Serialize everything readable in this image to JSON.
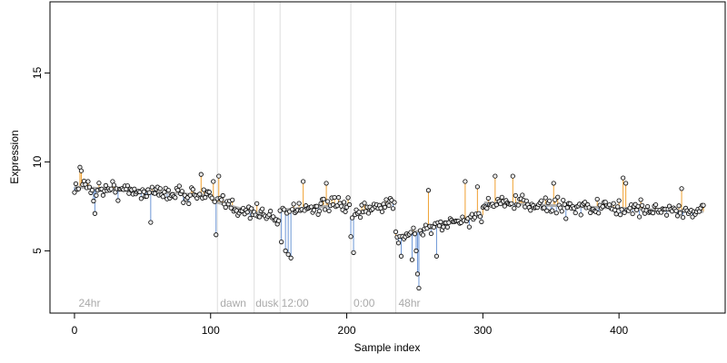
{
  "chart_data": {
    "type": "scatter",
    "xlabel": "Sample index",
    "ylabel": "Expression",
    "xlim": [
      -18,
      478
    ],
    "ylim": [
      1.5,
      19
    ],
    "xticks": [
      0,
      100,
      200,
      300,
      400
    ],
    "yticks": [
      5,
      10,
      15
    ],
    "grid": false,
    "annotations": [
      {
        "label": "24hr",
        "x": 3
      },
      {
        "label": "dawn",
        "x": 107
      },
      {
        "label": "dusk",
        "x": 133
      },
      {
        "label": "12:00",
        "x": 152
      },
      {
        "label": "0:00",
        "x": 205
      },
      {
        "label": "48hr",
        "x": 238
      }
    ],
    "vlines": [
      105,
      132,
      151,
      203,
      236
    ],
    "colors": {
      "above": "#f0a030",
      "below": "#6c96d6",
      "trend": "#b0b0b0",
      "point_fill": "#e8e8e8",
      "point_stroke": "#000000",
      "vline": "#dddddd",
      "annotation": "#aaaaaa"
    },
    "trend_segments": [
      {
        "x": [
          0,
          100
        ],
        "y": [
          8.6,
          8.1
        ]
      },
      {
        "x": [
          101,
          150
        ],
        "y": [
          7.8,
          6.8
        ]
      },
      {
        "x": [
          151,
          202
        ],
        "y": [
          7.3,
          7.6
        ]
      },
      {
        "x": [
          203,
          235
        ],
        "y": [
          6.9,
          7.8
        ]
      },
      {
        "x": [
          236,
          300
        ],
        "y": [
          5.8,
          7.0
        ]
      },
      {
        "x": [
          301,
          462
        ],
        "y": [
          7.7,
          7.2
        ]
      }
    ],
    "outliers": [
      {
        "x": 4,
        "y": 9.7
      },
      {
        "x": 5,
        "y": 9.5
      },
      {
        "x": 10,
        "y": 8.9
      },
      {
        "x": 14,
        "y": 7.8
      },
      {
        "x": 15,
        "y": 7.1
      },
      {
        "x": 56,
        "y": 6.6
      },
      {
        "x": 93,
        "y": 9.3
      },
      {
        "x": 102,
        "y": 8.9
      },
      {
        "x": 104,
        "y": 5.9
      },
      {
        "x": 106,
        "y": 9.2
      },
      {
        "x": 152,
        "y": 5.5
      },
      {
        "x": 155,
        "y": 5.0
      },
      {
        "x": 157,
        "y": 4.8
      },
      {
        "x": 159,
        "y": 4.6
      },
      {
        "x": 168,
        "y": 8.9
      },
      {
        "x": 185,
        "y": 8.8
      },
      {
        "x": 203,
        "y": 5.8
      },
      {
        "x": 205,
        "y": 4.9
      },
      {
        "x": 240,
        "y": 4.7
      },
      {
        "x": 248,
        "y": 4.5
      },
      {
        "x": 251,
        "y": 5.0
      },
      {
        "x": 252,
        "y": 3.7
      },
      {
        "x": 253,
        "y": 2.9
      },
      {
        "x": 260,
        "y": 8.4
      },
      {
        "x": 266,
        "y": 4.7
      },
      {
        "x": 287,
        "y": 8.9
      },
      {
        "x": 296,
        "y": 8.6
      },
      {
        "x": 309,
        "y": 9.2
      },
      {
        "x": 322,
        "y": 9.2
      },
      {
        "x": 352,
        "y": 8.8
      },
      {
        "x": 403,
        "y": 9.1
      },
      {
        "x": 405,
        "y": 8.8
      },
      {
        "x": 446,
        "y": 8.5
      }
    ]
  }
}
